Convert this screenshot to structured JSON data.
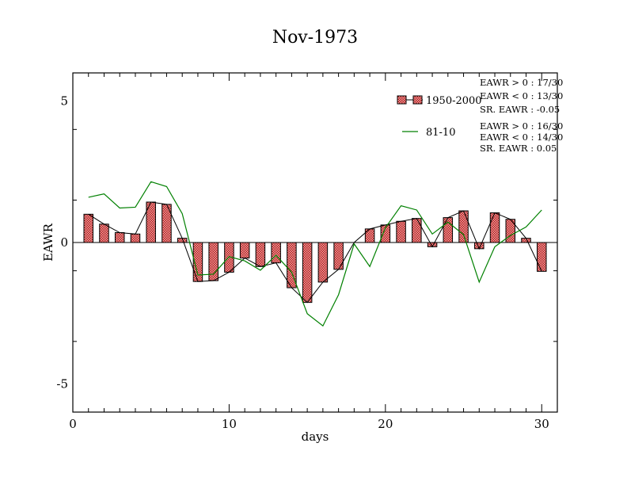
{
  "chart_data": {
    "type": "bar",
    "title": "Nov-1973",
    "xlabel": "days",
    "ylabel": "EAWR",
    "xlim": [
      0,
      31
    ],
    "ylim": [
      -6,
      6
    ],
    "xticks": [
      0,
      10,
      20,
      30
    ],
    "yticks": [
      -5,
      0,
      5
    ],
    "x": [
      1,
      2,
      3,
      4,
      5,
      6,
      7,
      8,
      9,
      10,
      11,
      12,
      13,
      14,
      15,
      16,
      17,
      18,
      19,
      20,
      21,
      22,
      23,
      24,
      25,
      26,
      27,
      28,
      29,
      30
    ],
    "series": [
      {
        "name": "1950-2000",
        "type": "bar+line",
        "color": "#e06060",
        "values": [
          1.0,
          0.65,
          0.35,
          0.3,
          1.43,
          1.35,
          0.15,
          -1.38,
          -1.35,
          -1.05,
          -0.55,
          -0.85,
          -0.72,
          -1.6,
          -2.12,
          -1.4,
          -0.95,
          0.0,
          0.48,
          0.62,
          0.75,
          0.85,
          -0.15,
          0.88,
          1.12,
          -0.22,
          1.05,
          0.82,
          0.15,
          -1.02
        ]
      },
      {
        "name": "81-10",
        "type": "line",
        "color": "#008000",
        "values": [
          1.6,
          1.72,
          1.22,
          1.25,
          2.15,
          1.98,
          1.02,
          -1.15,
          -1.12,
          -0.5,
          -0.65,
          -0.98,
          -0.45,
          -1.05,
          -2.52,
          -2.95,
          -1.85,
          -0.05,
          -0.85,
          0.52,
          1.3,
          1.15,
          0.3,
          0.72,
          0.28,
          -1.4,
          -0.15,
          0.25,
          0.55,
          1.15
        ]
      }
    ],
    "stats": [
      [
        "EAWR > 0 : 17/30",
        "EAWR < 0 : 13/30",
        "SR. EAWR : -0.05"
      ],
      [
        "EAWR > 0 : 16/30",
        "EAWR < 0 : 14/30",
        "SR. EAWR :  0.05"
      ]
    ]
  }
}
